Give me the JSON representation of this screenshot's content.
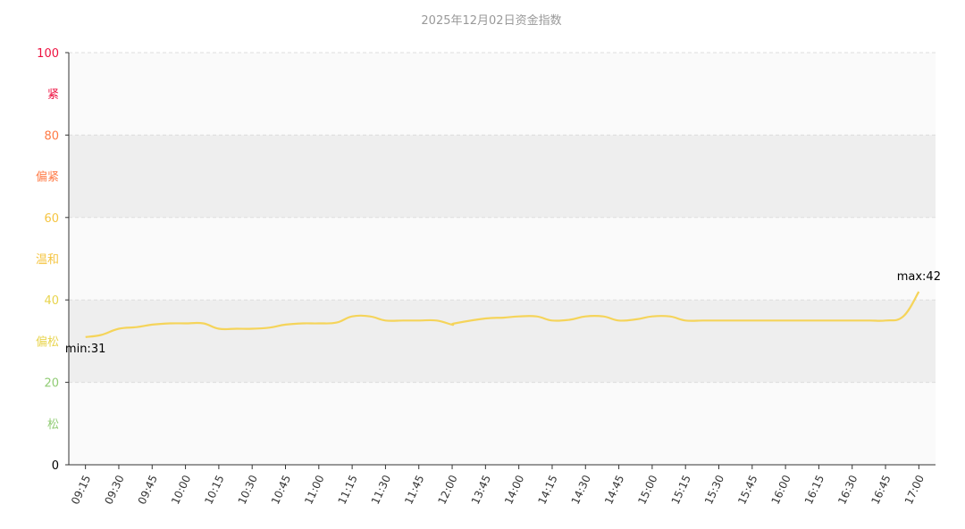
{
  "chart_data": {
    "type": "line",
    "title": "2025年12月02日资金指数",
    "xlabel": "",
    "ylabel": "",
    "ylim": [
      0,
      100
    ],
    "grid": true,
    "x": [
      "09:15",
      "09:30",
      "09:45",
      "10:00",
      "10:15",
      "10:30",
      "10:45",
      "11:00",
      "11:15",
      "11:30",
      "11:45",
      "12:00",
      "13:45",
      "14:00",
      "14:15",
      "14:30",
      "14:45",
      "15:00",
      "15:15",
      "15:30",
      "15:45",
      "16:00",
      "16:15",
      "16:30",
      "16:45",
      "17:00"
    ],
    "series": [
      {
        "name": "",
        "color": "#f5d45a",
        "points": [
          [
            "09:15",
            31
          ],
          [
            "09:22",
            31.5
          ],
          [
            "09:30",
            33
          ],
          [
            "09:38",
            33.4
          ],
          [
            "09:45",
            34
          ],
          [
            "09:53",
            34.3
          ],
          [
            "10:00",
            34.3
          ],
          [
            "10:08",
            34.3
          ],
          [
            "10:15",
            33
          ],
          [
            "10:23",
            33
          ],
          [
            "10:30",
            33
          ],
          [
            "10:38",
            33.3
          ],
          [
            "10:45",
            34
          ],
          [
            "10:53",
            34.3
          ],
          [
            "11:00",
            34.3
          ],
          [
            "11:08",
            34.5
          ],
          [
            "11:15",
            36
          ],
          [
            "11:23",
            36
          ],
          [
            "11:30",
            35
          ],
          [
            "11:38",
            35
          ],
          [
            "11:45",
            35
          ],
          [
            "11:53",
            35
          ],
          [
            "12:00",
            34
          ],
          [
            "12:08",
            34.3
          ],
          [
            "13:45",
            35.5
          ],
          [
            "13:53",
            35.7
          ],
          [
            "14:00",
            36
          ],
          [
            "14:08",
            36
          ],
          [
            "14:15",
            35
          ],
          [
            "14:23",
            35.2
          ],
          [
            "14:30",
            36
          ],
          [
            "14:38",
            36
          ],
          [
            "14:45",
            35
          ],
          [
            "14:53",
            35.3
          ],
          [
            "15:00",
            36
          ],
          [
            "15:08",
            36
          ],
          [
            "15:15",
            35
          ],
          [
            "15:23",
            35
          ],
          [
            "15:30",
            35
          ],
          [
            "15:38",
            35
          ],
          [
            "15:45",
            35
          ],
          [
            "15:53",
            35
          ],
          [
            "16:00",
            35
          ],
          [
            "16:08",
            35
          ],
          [
            "16:15",
            35
          ],
          [
            "16:23",
            35
          ],
          [
            "16:30",
            35
          ],
          [
            "16:38",
            35
          ],
          [
            "16:45",
            35
          ],
          [
            "16:53",
            36
          ],
          [
            "17:00",
            42
          ]
        ]
      }
    ],
    "y_ticks": [
      {
        "value": 0,
        "label": "0",
        "color": "#000000"
      },
      {
        "value": 20,
        "label": "20",
        "color": "#91cc75"
      },
      {
        "value": 40,
        "label": "40",
        "color": "#e8d44d"
      },
      {
        "value": 60,
        "label": "60",
        "color": "#f5c542"
      },
      {
        "value": 80,
        "label": "80",
        "color": "#ff7a45"
      },
      {
        "value": 100,
        "label": "100",
        "color": "#ee1140"
      }
    ],
    "zones": [
      {
        "from": 0,
        "to": 20,
        "label": "松",
        "color": "#91cc75",
        "fill": "#fafafa"
      },
      {
        "from": 20,
        "to": 40,
        "label": "偏松",
        "color": "#e8d44d",
        "fill": "#eeeeee"
      },
      {
        "from": 40,
        "to": 60,
        "label": "温和",
        "color": "#f5c542",
        "fill": "#fafafa"
      },
      {
        "from": 60,
        "to": 80,
        "label": "偏紧",
        "color": "#ff7a45",
        "fill": "#eeeeee"
      },
      {
        "from": 80,
        "to": 100,
        "label": "紧",
        "color": "#ee1140",
        "fill": "#fafafa"
      }
    ],
    "annotations": [
      {
        "text": "min:31",
        "x": "09:15",
        "y": 31,
        "position": "below"
      },
      {
        "text": "max:42",
        "x": "17:00",
        "y": 42,
        "position": "above"
      }
    ]
  }
}
